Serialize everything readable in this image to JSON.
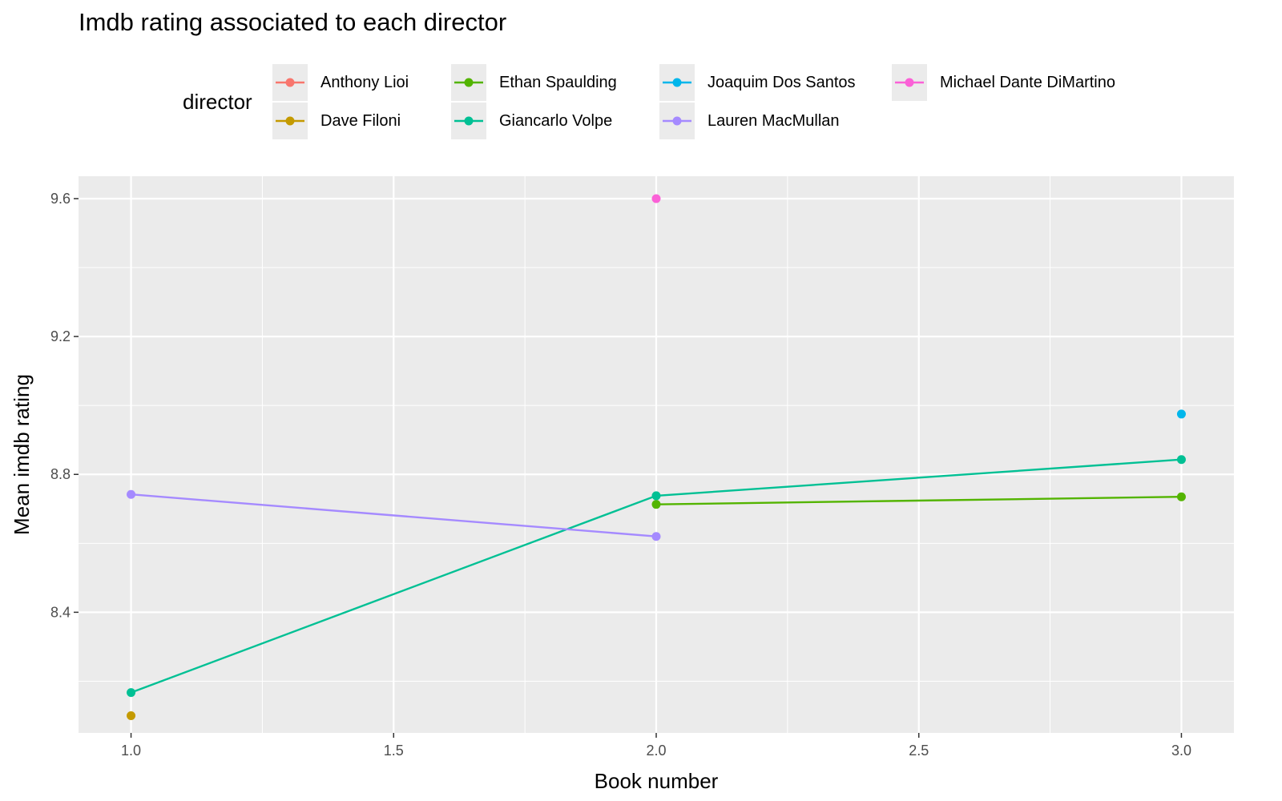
{
  "chart_data": {
    "type": "line",
    "title": "Imdb rating associated to each director",
    "xlabel": "Book number",
    "ylabel": "Mean imdb rating",
    "xlim": [
      0.9,
      3.1
    ],
    "ylim": [
      8.05,
      9.665
    ],
    "x_ticks": [
      1.0,
      1.5,
      2.0,
      2.5,
      3.0
    ],
    "x_tick_labels": [
      "1.0",
      "1.5",
      "2.0",
      "2.5",
      "3.0"
    ],
    "y_ticks": [
      8.4,
      8.8,
      9.2,
      9.6
    ],
    "y_tick_labels": [
      "8.4",
      "8.8",
      "9.2",
      "9.6"
    ],
    "grid": true,
    "legend": {
      "title": "director",
      "placement": "top"
    },
    "series": [
      {
        "name": "Anthony Lioi",
        "color": "#F8766D",
        "x": [],
        "y": []
      },
      {
        "name": "Dave Filoni",
        "color": "#C49A00",
        "x": [
          1.0
        ],
        "y": [
          8.1
        ]
      },
      {
        "name": "Ethan Spaulding",
        "color": "#53B400",
        "x": [
          2.0,
          3.0
        ],
        "y": [
          8.713,
          8.735
        ]
      },
      {
        "name": "Giancarlo Volpe",
        "color": "#00C094",
        "x": [
          1.0,
          2.0,
          3.0
        ],
        "y": [
          8.167,
          8.738,
          8.843
        ]
      },
      {
        "name": "Joaquim Dos Santos",
        "color": "#00B6EB",
        "x": [
          3.0
        ],
        "y": [
          8.975
        ]
      },
      {
        "name": "Lauren MacMullan",
        "color": "#A58AFF",
        "x": [
          1.0,
          2.0
        ],
        "y": [
          8.742,
          8.62
        ]
      },
      {
        "name": "Michael Dante DiMartino",
        "color": "#FB61D7",
        "x": [
          2.0
        ],
        "y": [
          9.6
        ]
      }
    ]
  }
}
